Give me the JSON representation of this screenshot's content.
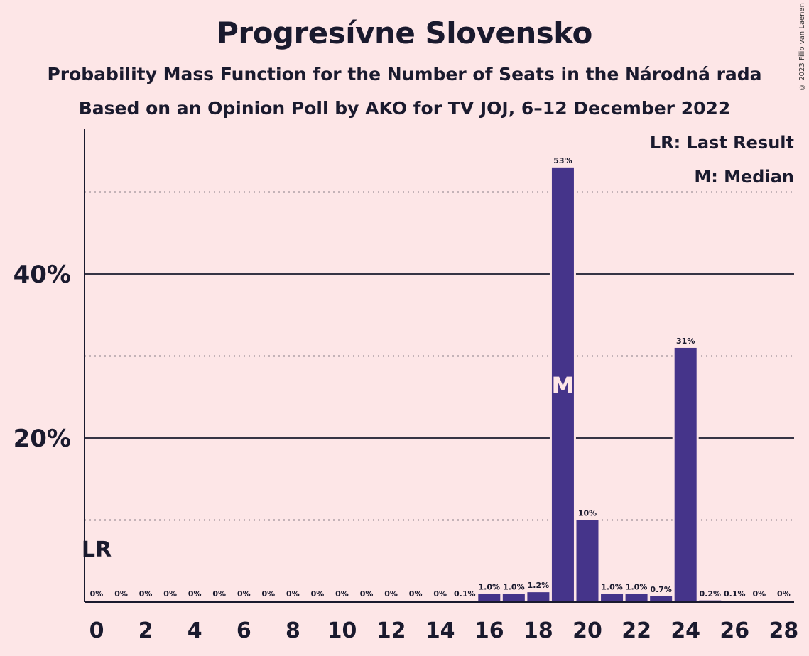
{
  "title": "Progresívne Slovensko",
  "subtitle1": "Probability Mass Function for the Number of Seats in the Národná rada",
  "subtitle2": "Based on an Opinion Poll by AKO for TV JOJ, 6–12 December 2022",
  "copyright": "© 2023 Filip van Laenen",
  "legend": {
    "lr": "LR: Last Result",
    "m": "M: Median"
  },
  "colors": {
    "background": "#fde6e7",
    "bar": "#45348a",
    "text": "#1a1a2e"
  },
  "chart_data": {
    "type": "bar",
    "x": [
      0,
      1,
      2,
      3,
      4,
      5,
      6,
      7,
      8,
      9,
      10,
      11,
      12,
      13,
      14,
      15,
      16,
      17,
      18,
      19,
      20,
      21,
      22,
      23,
      24,
      25,
      26,
      27,
      28
    ],
    "values": [
      0,
      0,
      0,
      0,
      0,
      0,
      0,
      0,
      0,
      0,
      0,
      0,
      0,
      0,
      0,
      0.1,
      1.0,
      1.0,
      1.2,
      53,
      10,
      1.0,
      1.0,
      0.7,
      31,
      0.2,
      0.1,
      0,
      0
    ],
    "labels": [
      "0%",
      "0%",
      "0%",
      "0%",
      "0%",
      "0%",
      "0%",
      "0%",
      "0%",
      "0%",
      "0%",
      "0%",
      "0%",
      "0%",
      "0%",
      "0.1%",
      "1.0%",
      "1.0%",
      "1.2%",
      "53%",
      "10%",
      "1.0%",
      "1.0%",
      "0.7%",
      "31%",
      "0.2%",
      "0.1%",
      "0%",
      "0%"
    ],
    "xticks": [
      0,
      2,
      4,
      6,
      8,
      10,
      12,
      14,
      16,
      18,
      20,
      22,
      24,
      26,
      28
    ],
    "yticks": [
      {
        "value": 20,
        "label": "20%"
      },
      {
        "value": 40,
        "label": "40%"
      }
    ],
    "gridlines_dotted": [
      10,
      30,
      50
    ],
    "ylim": [
      0,
      57
    ],
    "last_result": {
      "x": 0,
      "label": "LR"
    },
    "median": {
      "x": 19,
      "label": "M"
    }
  }
}
